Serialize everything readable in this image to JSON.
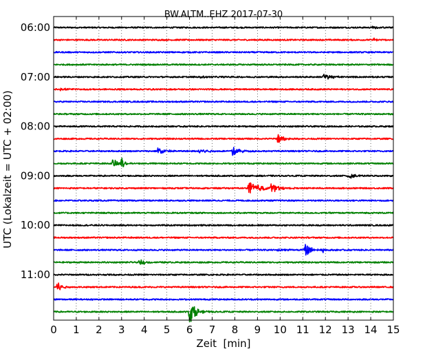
{
  "chart_data": {
    "type": "line",
    "title": "BW.ALTM..EHZ 2017-07-30",
    "xlabel": "Zeit  [min]",
    "ylabel": "UTC (Lokalzeit = UTC + 02:00)",
    "xlim": [
      0,
      15
    ],
    "x_ticks": [
      "0",
      "1",
      "2",
      "3",
      "4",
      "5",
      "6",
      "7",
      "8",
      "9",
      "10",
      "11",
      "12",
      "13",
      "14",
      "15"
    ],
    "grid": "vertical dotted",
    "colors": [
      "#000000",
      "#ff0000",
      "#0000ff",
      "#008000"
    ],
    "y_ticks": [
      {
        "label": "06:00",
        "trace": 0
      },
      {
        "label": "07:00",
        "trace": 4
      },
      {
        "label": "08:00",
        "trace": 8
      },
      {
        "label": "09:00",
        "trace": 12
      },
      {
        "label": "10:00",
        "trace": 16
      },
      {
        "label": "11:00",
        "trace": 20
      }
    ],
    "traces": [
      {
        "start": "06:00",
        "events": [
          {
            "t": 14.1,
            "amp": 0.2,
            "dur": 0.3
          }
        ]
      },
      {
        "start": "06:15",
        "events": [
          {
            "t": 14.1,
            "amp": 0.3,
            "dur": 0.2
          }
        ]
      },
      {
        "start": "06:30",
        "events": []
      },
      {
        "start": "06:45",
        "events": []
      },
      {
        "start": "07:00",
        "events": [
          {
            "t": 11.9,
            "amp": 0.4,
            "dur": 0.6
          },
          {
            "t": 6.5,
            "amp": 0.15,
            "dur": 0.4
          }
        ]
      },
      {
        "start": "07:15",
        "events": [
          {
            "t": 0.3,
            "amp": 0.2,
            "dur": 0.4
          }
        ]
      },
      {
        "start": "07:30",
        "events": []
      },
      {
        "start": "07:45",
        "events": []
      },
      {
        "start": "08:00",
        "events": []
      },
      {
        "start": "08:15",
        "events": [
          {
            "t": 9.9,
            "amp": 0.8,
            "dur": 0.3
          }
        ]
      },
      {
        "start": "08:30",
        "events": [
          {
            "t": 4.6,
            "amp": 0.5,
            "dur": 0.5
          },
          {
            "t": 6.4,
            "amp": 0.5,
            "dur": 0.5
          },
          {
            "t": 7.9,
            "amp": 0.6,
            "dur": 0.5
          }
        ]
      },
      {
        "start": "08:45",
        "events": [
          {
            "t": 2.6,
            "amp": 0.5,
            "dur": 0.6
          },
          {
            "t": 3.0,
            "amp": 0.9,
            "dur": 0.2
          }
        ]
      },
      {
        "start": "09:00",
        "events": [
          {
            "t": 13.0,
            "amp": 0.5,
            "dur": 0.5
          }
        ]
      },
      {
        "start": "09:15",
        "events": [
          {
            "t": 8.6,
            "amp": 0.9,
            "dur": 0.8
          },
          {
            "t": 9.6,
            "amp": 0.6,
            "dur": 0.5
          }
        ]
      },
      {
        "start": "09:30",
        "events": []
      },
      {
        "start": "09:45",
        "events": []
      },
      {
        "start": "10:00",
        "events": []
      },
      {
        "start": "10:15",
        "events": []
      },
      {
        "start": "10:30",
        "events": [
          {
            "t": 9.9,
            "amp": 0.2,
            "dur": 0.6
          },
          {
            "t": 11.1,
            "amp": 1.3,
            "dur": 0.3
          },
          {
            "t": 11.9,
            "amp": 0.3,
            "dur": 0.2
          }
        ]
      },
      {
        "start": "10:45",
        "events": [
          {
            "t": 3.8,
            "amp": 0.4,
            "dur": 0.4
          }
        ]
      },
      {
        "start": "11:00",
        "events": []
      },
      {
        "start": "11:15",
        "events": [
          {
            "t": 0.15,
            "amp": 0.9,
            "dur": 0.3
          }
        ]
      },
      {
        "start": "11:30",
        "events": []
      },
      {
        "start": "11:45",
        "events": [
          {
            "t": 6.0,
            "amp": 1.6,
            "dur": 0.4
          }
        ]
      }
    ]
  }
}
